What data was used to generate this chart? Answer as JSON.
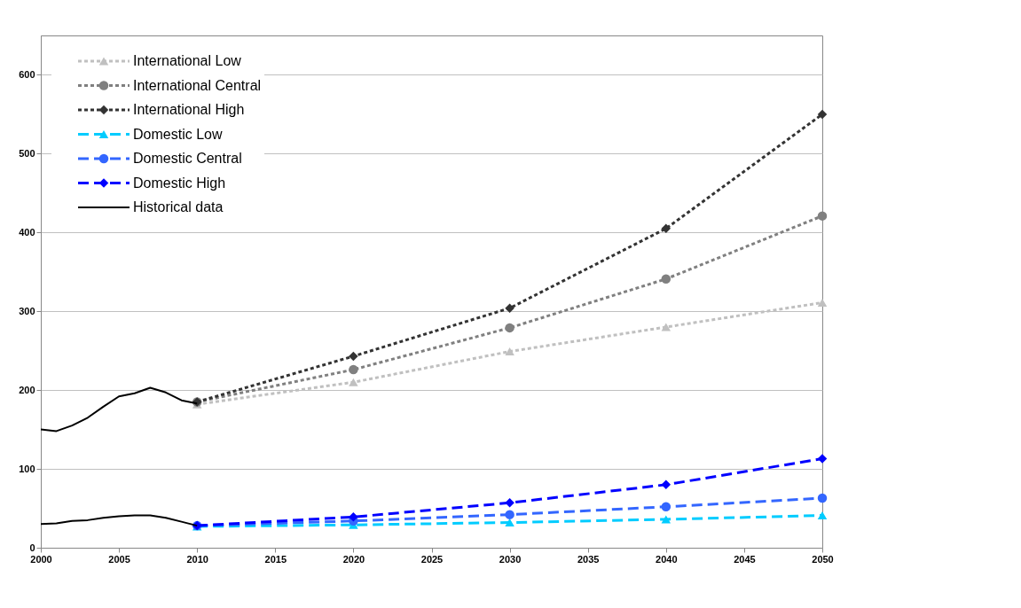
{
  "chart_data": {
    "type": "line",
    "xlim": [
      2000,
      2050
    ],
    "xticks": [
      2000,
      2005,
      2010,
      2015,
      2020,
      2025,
      2030,
      2035,
      2040,
      2045,
      2050
    ],
    "ylim": [
      0,
      650
    ],
    "yticks": [
      0,
      100,
      200,
      300,
      400,
      500,
      600
    ],
    "grid": "y",
    "legend": "top left",
    "series": [
      {
        "name": "International Low",
        "color": "#c0c0c0",
        "marker": "triangle",
        "line_style": "dotted",
        "x": [
          2010,
          2020,
          2030,
          2040,
          2050
        ],
        "values": [
          182,
          210,
          249,
          280,
          311
        ]
      },
      {
        "name": "International Central",
        "color": "#808080",
        "marker": "circle",
        "line_style": "dotted",
        "x": [
          2010,
          2020,
          2030,
          2040,
          2050
        ],
        "values": [
          185,
          226,
          279,
          341,
          421
        ]
      },
      {
        "name": "International High",
        "color": "#333333",
        "marker": "diamond",
        "line_style": "dotted",
        "x": [
          2010,
          2020,
          2030,
          2040,
          2050
        ],
        "values": [
          185,
          243,
          304,
          405,
          550
        ]
      },
      {
        "name": "Domestic Low",
        "color": "#00ccff",
        "marker": "triangle",
        "line_style": "dashed",
        "x": [
          2010,
          2020,
          2030,
          2040,
          2050
        ],
        "values": [
          27,
          29,
          32,
          36,
          41
        ]
      },
      {
        "name": "Domestic Central",
        "color": "#3366ff",
        "marker": "circle",
        "line_style": "dashed",
        "x": [
          2010,
          2020,
          2030,
          2040,
          2050
        ],
        "values": [
          28,
          34,
          42,
          52,
          63
        ]
      },
      {
        "name": "Domestic High",
        "color": "#0000ff",
        "marker": "diamond",
        "line_style": "dashed",
        "x": [
          2010,
          2020,
          2030,
          2040,
          2050
        ],
        "values": [
          28,
          39,
          57,
          80,
          113
        ]
      },
      {
        "name": "Historical data",
        "color": "#000000",
        "marker": "none",
        "line_style": "solid",
        "x": [
          2000,
          2001,
          2002,
          2003,
          2004,
          2005,
          2006,
          2007,
          2008,
          2009,
          2010
        ],
        "values": [
          150,
          148,
          155,
          165,
          179,
          192,
          196,
          203,
          197,
          187,
          183
        ]
      },
      {
        "color": "#000000",
        "marker": "none",
        "line_style": "solid",
        "x": [
          2000,
          2001,
          2002,
          2003,
          2004,
          2005,
          2006,
          2007,
          2008,
          2009,
          2010
        ],
        "values": [
          30,
          31,
          34,
          35,
          38,
          40,
          41,
          41,
          38,
          33,
          28
        ]
      }
    ]
  }
}
